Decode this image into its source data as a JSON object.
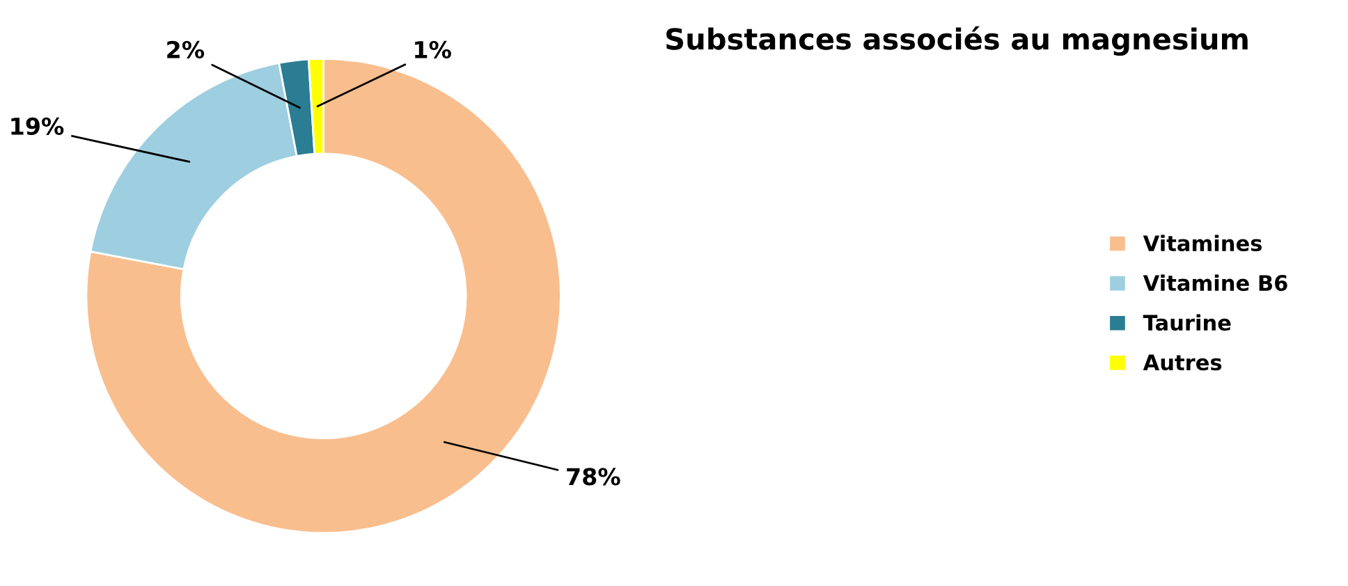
{
  "chart_data": {
    "type": "donut",
    "title": "Substances associés au magnesium",
    "categories": [
      "Vitamines",
      "Vitamine B6",
      "Taurine",
      "Autres"
    ],
    "values": [
      78,
      19,
      2,
      1
    ],
    "colors": [
      "#f9be8e",
      "#9ecfe0",
      "#2a7d93",
      "#ffff00"
    ],
    "value_labels": [
      "78%",
      "19%",
      "2%",
      "1%"
    ],
    "legend": "right"
  }
}
